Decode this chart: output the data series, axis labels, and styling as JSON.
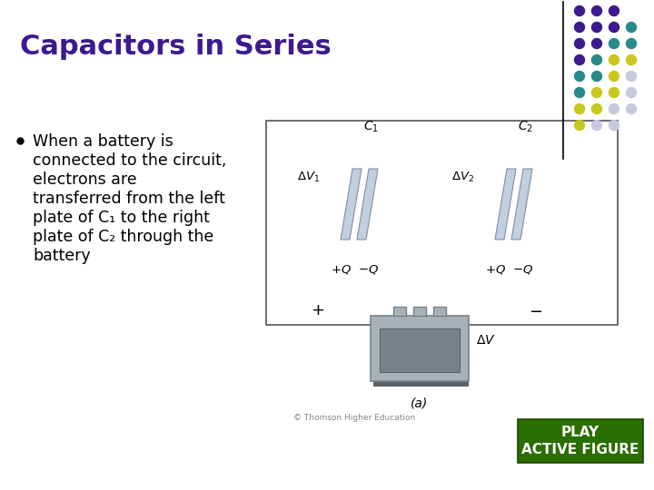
{
  "title": "Capacitors in Series",
  "title_color": "#3d1a8e",
  "title_fontsize": 22,
  "title_bold": true,
  "bg_color": "#ffffff",
  "bullet_text_lines": [
    "When a battery is",
    "connected to the circuit,",
    "electrons are",
    "transferred from the left",
    "plate of C₁ to the right",
    "plate of C₂ through the",
    "battery"
  ],
  "bullet_text_fontsize": 12.5,
  "bullet_color": "#000000",
  "dot_rows": [
    [
      "#3d1a8e",
      "#3d1a8e",
      "#3d1a8e"
    ],
    [
      "#3d1a8e",
      "#3d1a8e",
      "#3d1a8e",
      "#2a8a8a"
    ],
    [
      "#3d1a8e",
      "#3d1a8e",
      "#2a8a8a",
      "#2a8a8a"
    ],
    [
      "#3d1a8e",
      "#2a8a8a",
      "#c8c820",
      "#c8c820"
    ],
    [
      "#2a8a8a",
      "#2a8a8a",
      "#c8c820",
      "#c8c8e0"
    ],
    [
      "#2a8a8a",
      "#c8c820",
      "#c8c820",
      "#c8c8e0"
    ],
    [
      "#c8c820",
      "#c8c820",
      "#c8c8e0",
      "#c8c8e0"
    ],
    [
      "#c8c820",
      "#c8c8e0",
      "#c8c8e0"
    ]
  ],
  "play_button_text": "PLAY\nACTIVE FIGURE",
  "play_button_color": "#2a6e00",
  "play_button_text_color": "#ffffff",
  "divider_line_color": "#000000",
  "plate_color": "#c0d0e0",
  "plate_edge": "#8090a0",
  "box_color": "#555555",
  "battery_body": "#a8b0b8",
  "battery_dark": "#7a8288",
  "battery_darker": "#5a6268"
}
